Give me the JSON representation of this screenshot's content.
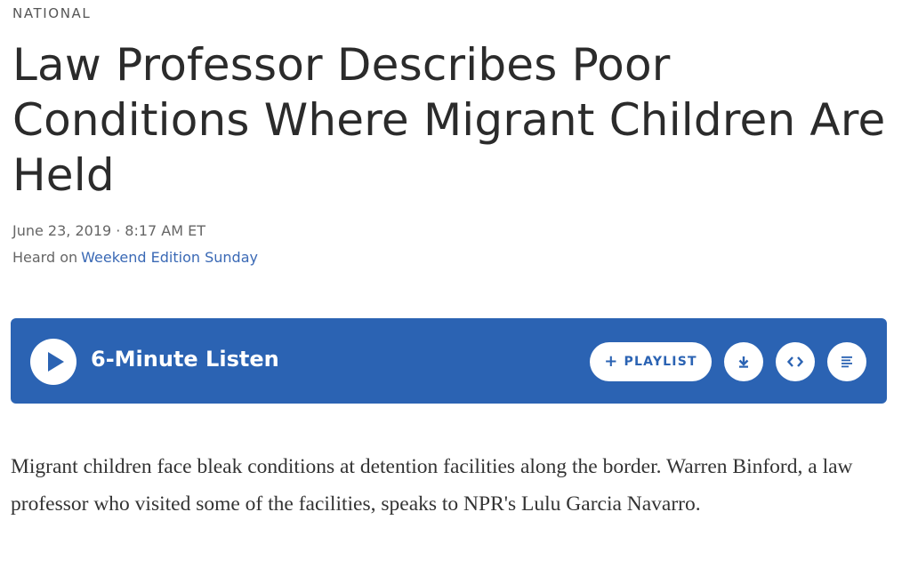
{
  "article": {
    "slug": "NATIONAL",
    "headline": "Law Professor Describes Poor Conditions Where Migrant Children Are Held",
    "date": "June 23, 2019",
    "separator": "·",
    "time": "8:17 AM ET",
    "heard_on_label": "Heard on",
    "program_link": "Weekend Edition Sunday",
    "teaser": "Migrant children face bleak conditions at detention facilities along the border. Warren Binford, a law professor who visited some of the facilities, speaks to NPR's Lulu Garcia Navarro."
  },
  "player": {
    "listen_label": "6-Minute Listen",
    "playlist_plus": "+",
    "playlist_label": "PLAYLIST",
    "icons": {
      "play": "play-icon",
      "download": "download-icon",
      "embed": "embed-icon",
      "transcript": "transcript-icon"
    }
  },
  "colors": {
    "player_background": "#2b63b3",
    "link": "#3a69b5",
    "headline": "#2b2b2b",
    "meta_text": "#666666"
  }
}
